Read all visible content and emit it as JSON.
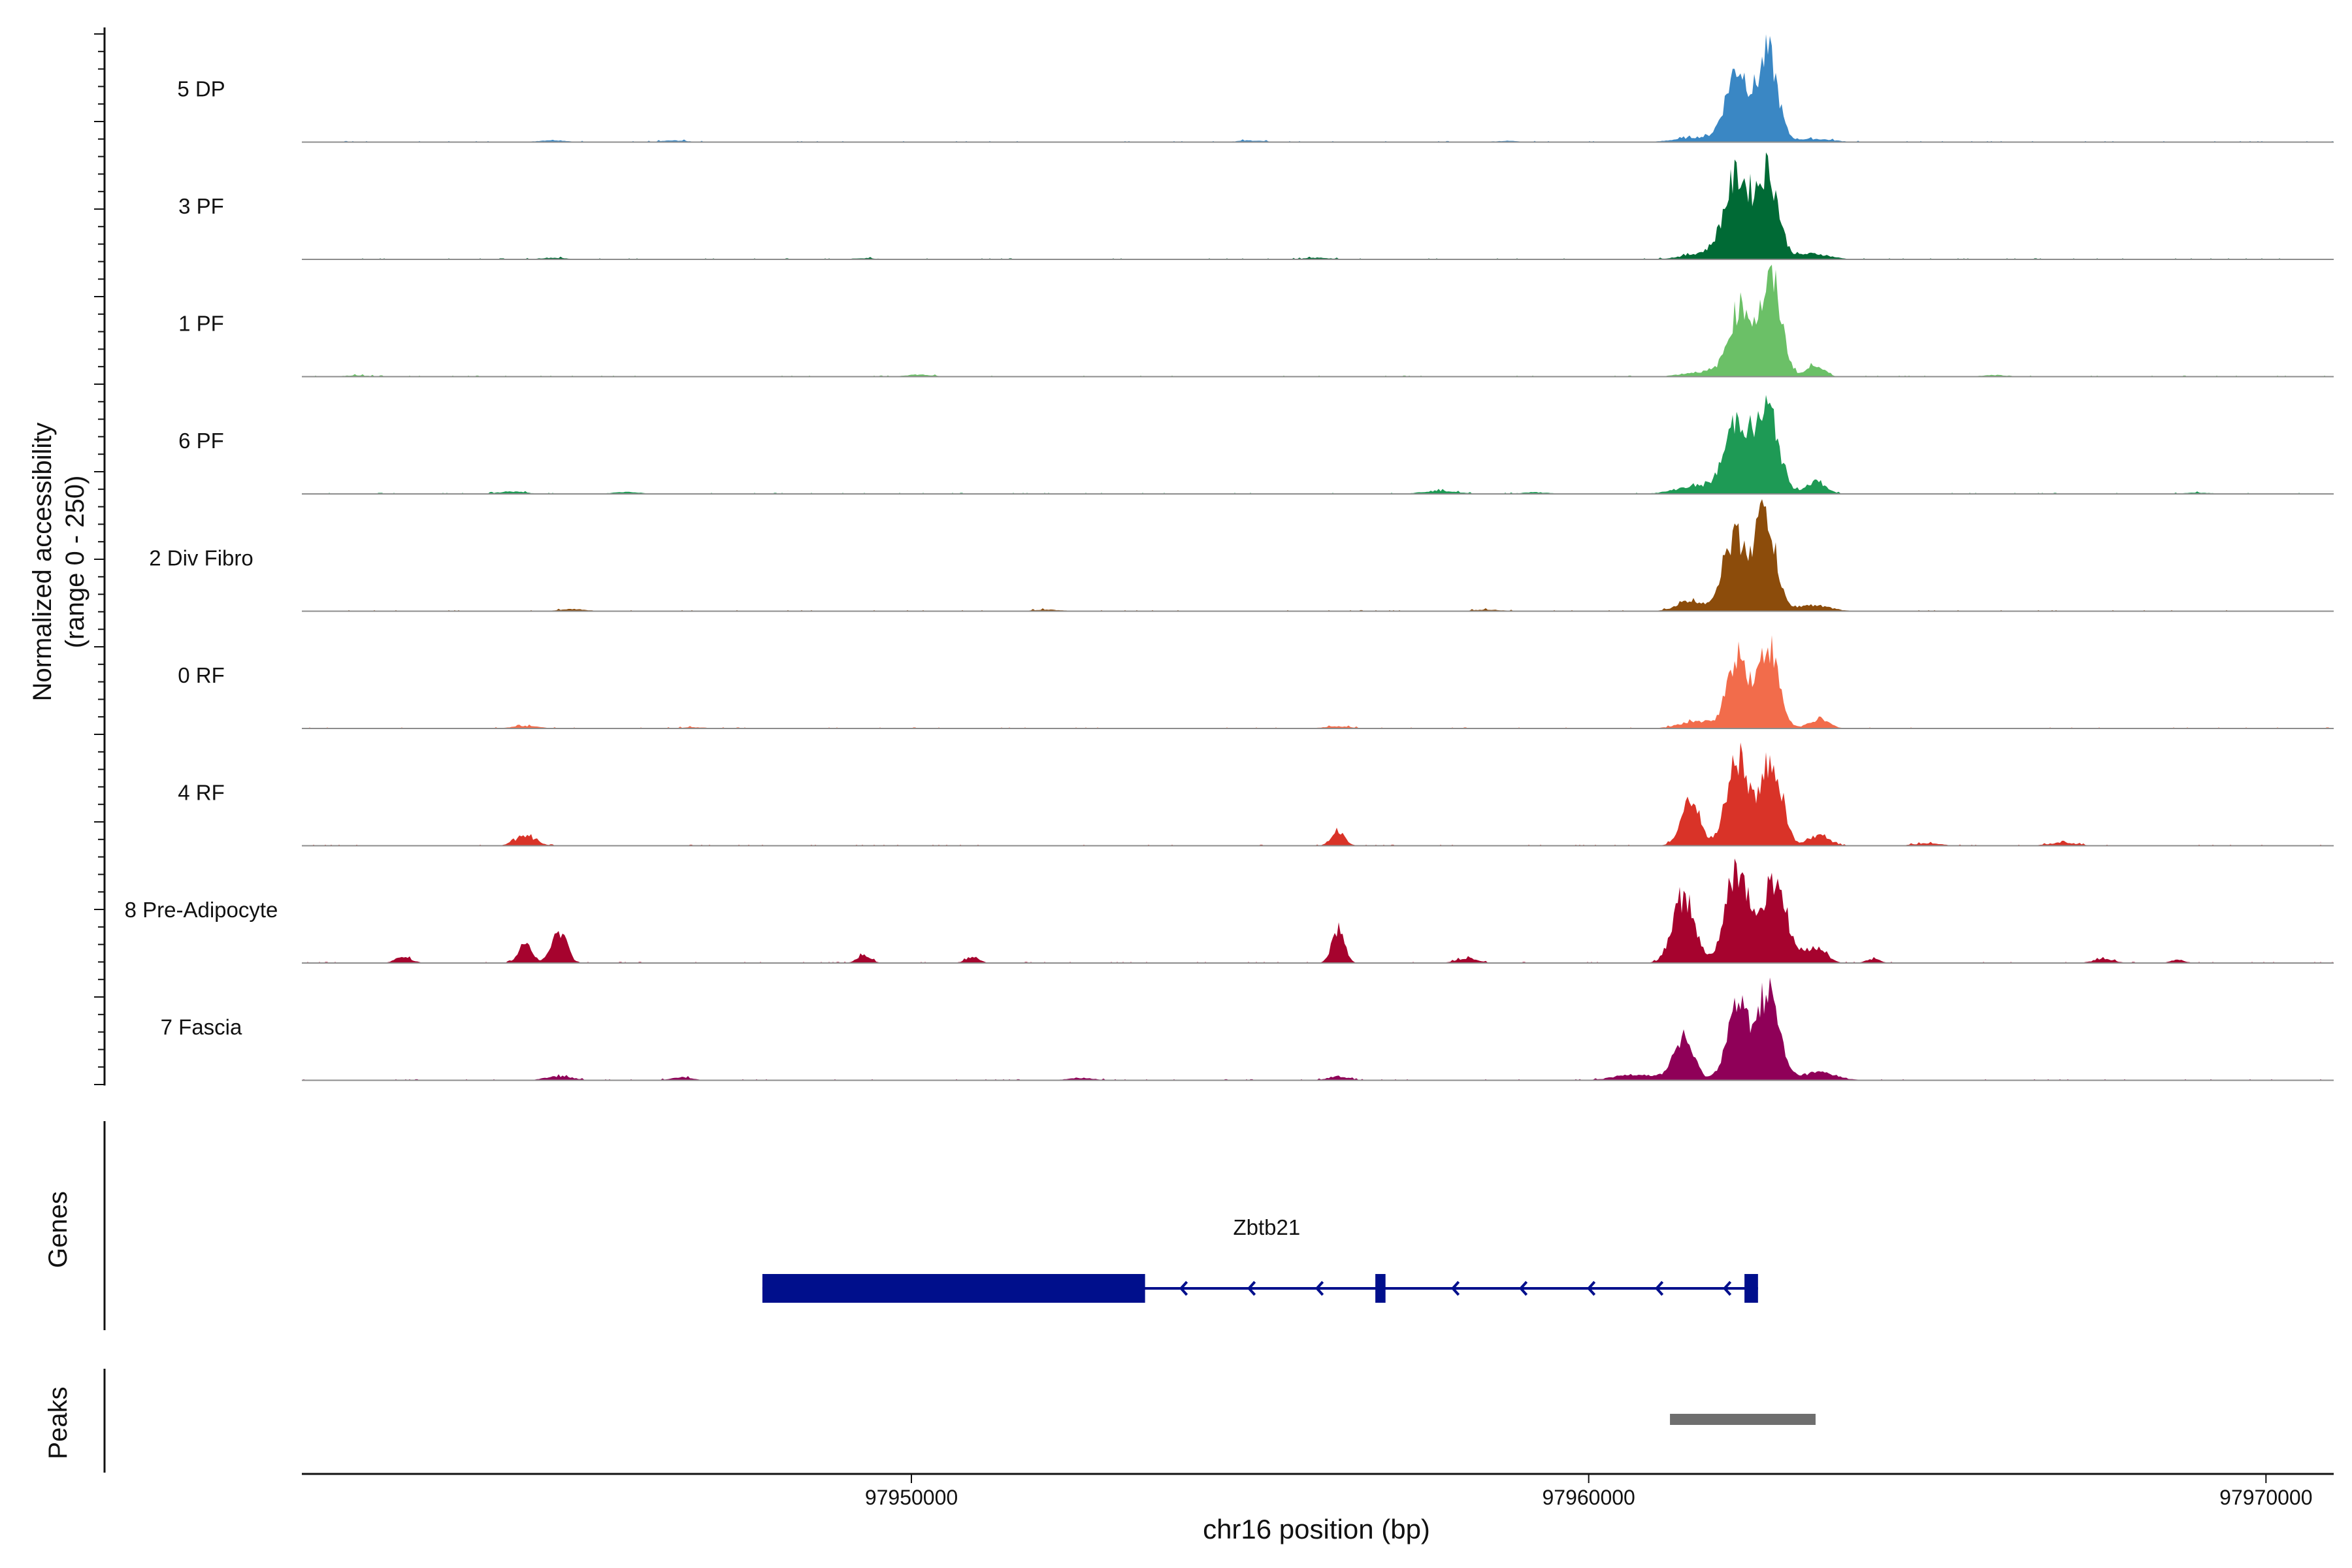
{
  "chart_data": {
    "type": "area",
    "xlabel": "chr16 position (bp)",
    "ylabel": "Normalized accessibility",
    "ylabel_range": "(range 0 - 250)",
    "xlim": [
      97941000,
      97971000
    ],
    "ylim": [
      0,
      250
    ],
    "x_ticks": [
      97950000,
      97960000,
      97970000
    ],
    "x_tick_labels": [
      "97950000",
      "97960000",
      "97970000"
    ],
    "grid": false,
    "legend": "none",
    "series": [
      {
        "name": "5 DP",
        "color": "#3a87c4",
        "peaks": [
          [
            97962200,
            180,
            170
          ],
          [
            97962650,
            210,
            140
          ],
          [
            97961600,
            12,
            300
          ],
          [
            97963300,
            8,
            300
          ],
          [
            97944700,
            5,
            200
          ],
          [
            97946500,
            4,
            200
          ],
          [
            97955000,
            4,
            200
          ],
          [
            97958800,
            3,
            200
          ]
        ]
      },
      {
        "name": "3 PF",
        "color": "#006a35",
        "peaks": [
          [
            97962200,
            200,
            190
          ],
          [
            97962650,
            210,
            150
          ],
          [
            97961700,
            15,
            300
          ],
          [
            97963300,
            14,
            250
          ],
          [
            97944700,
            4,
            200
          ],
          [
            97949300,
            3,
            200
          ],
          [
            97956000,
            4,
            200
          ]
        ]
      },
      {
        "name": "1 PF",
        "color": "#6bc067",
        "peaks": [
          [
            97962250,
            170,
            170
          ],
          [
            97962700,
            230,
            150
          ],
          [
            97963350,
            30,
            120
          ],
          [
            97961700,
            12,
            300
          ],
          [
            97941800,
            3,
            200
          ],
          [
            97950100,
            5,
            200
          ],
          [
            97966000,
            4,
            200
          ]
        ]
      },
      {
        "name": "6 PF",
        "color": "#1e9a55",
        "peaks": [
          [
            97962200,
            180,
            180
          ],
          [
            97962650,
            200,
            160
          ],
          [
            97963350,
            30,
            150
          ],
          [
            97961600,
            20,
            300
          ],
          [
            97944100,
            6,
            200
          ],
          [
            97945800,
            5,
            200
          ],
          [
            97957800,
            8,
            250
          ],
          [
            97959200,
            4,
            200
          ],
          [
            97969000,
            3,
            200
          ]
        ]
      },
      {
        "name": "2 Div Fibro",
        "color": "#8c4c0b",
        "peaks": [
          [
            97962150,
            180,
            170
          ],
          [
            97962600,
            240,
            150
          ],
          [
            97961500,
            25,
            200
          ],
          [
            97963300,
            15,
            250
          ],
          [
            97945000,
            5,
            200
          ],
          [
            97952000,
            4,
            200
          ],
          [
            97958500,
            4,
            200
          ]
        ]
      },
      {
        "name": "0 RF",
        "color": "#f26c4b",
        "peaks": [
          [
            97962200,
            180,
            150
          ],
          [
            97962650,
            200,
            150
          ],
          [
            97961600,
            18,
            250
          ],
          [
            97963400,
            22,
            150
          ],
          [
            97944300,
            6,
            200
          ],
          [
            97956300,
            5,
            200
          ],
          [
            97946800,
            3,
            200
          ]
        ]
      },
      {
        "name": "4 RF",
        "color": "#d93328",
        "peaks": [
          [
            97961500,
            110,
            140
          ],
          [
            97962200,
            220,
            160
          ],
          [
            97962700,
            210,
            150
          ],
          [
            97963400,
            25,
            150
          ],
          [
            97944300,
            25,
            150
          ],
          [
            97956300,
            35,
            100
          ],
          [
            97967000,
            8,
            200
          ],
          [
            97965000,
            6,
            200
          ]
        ]
      },
      {
        "name": "8 Pre-Adipocyte",
        "color": "#a6032e",
        "peaks": [
          [
            97961400,
            160,
            160
          ],
          [
            97962200,
            230,
            170
          ],
          [
            97962750,
            200,
            170
          ],
          [
            97963350,
            40,
            150
          ],
          [
            97944300,
            50,
            100
          ],
          [
            97944800,
            80,
            110
          ],
          [
            97956300,
            85,
            90
          ],
          [
            97942500,
            15,
            120
          ],
          [
            97949300,
            20,
            100
          ],
          [
            97950900,
            15,
            100
          ],
          [
            97958200,
            12,
            150
          ],
          [
            97964200,
            10,
            100
          ],
          [
            97967600,
            10,
            150
          ],
          [
            97968700,
            8,
            100
          ]
        ]
      },
      {
        "name": "7 Fascia",
        "color": "#8f0058",
        "peaks": [
          [
            97961400,
            100,
            150
          ],
          [
            97962200,
            180,
            160
          ],
          [
            97962650,
            215,
            160
          ],
          [
            97960700,
            15,
            300
          ],
          [
            97963400,
            20,
            250
          ],
          [
            97944800,
            10,
            200
          ],
          [
            97946600,
            8,
            150
          ],
          [
            97956300,
            10,
            150
          ],
          [
            97952500,
            6,
            200
          ]
        ]
      }
    ],
    "genes_track": {
      "label": "Genes",
      "gene_name": "Zbtb21",
      "color": "#000f8c",
      "start": 97947800,
      "end": 97962500,
      "strand": "-",
      "exons": [
        [
          97947800,
          97953450
        ],
        [
          97956850,
          97957000
        ],
        [
          97962300,
          97962500
        ]
      ]
    },
    "peaks_track": {
      "label": "Peaks",
      "color": "#6e6e6e",
      "regions": [
        [
          97961200,
          97963350
        ]
      ]
    }
  }
}
